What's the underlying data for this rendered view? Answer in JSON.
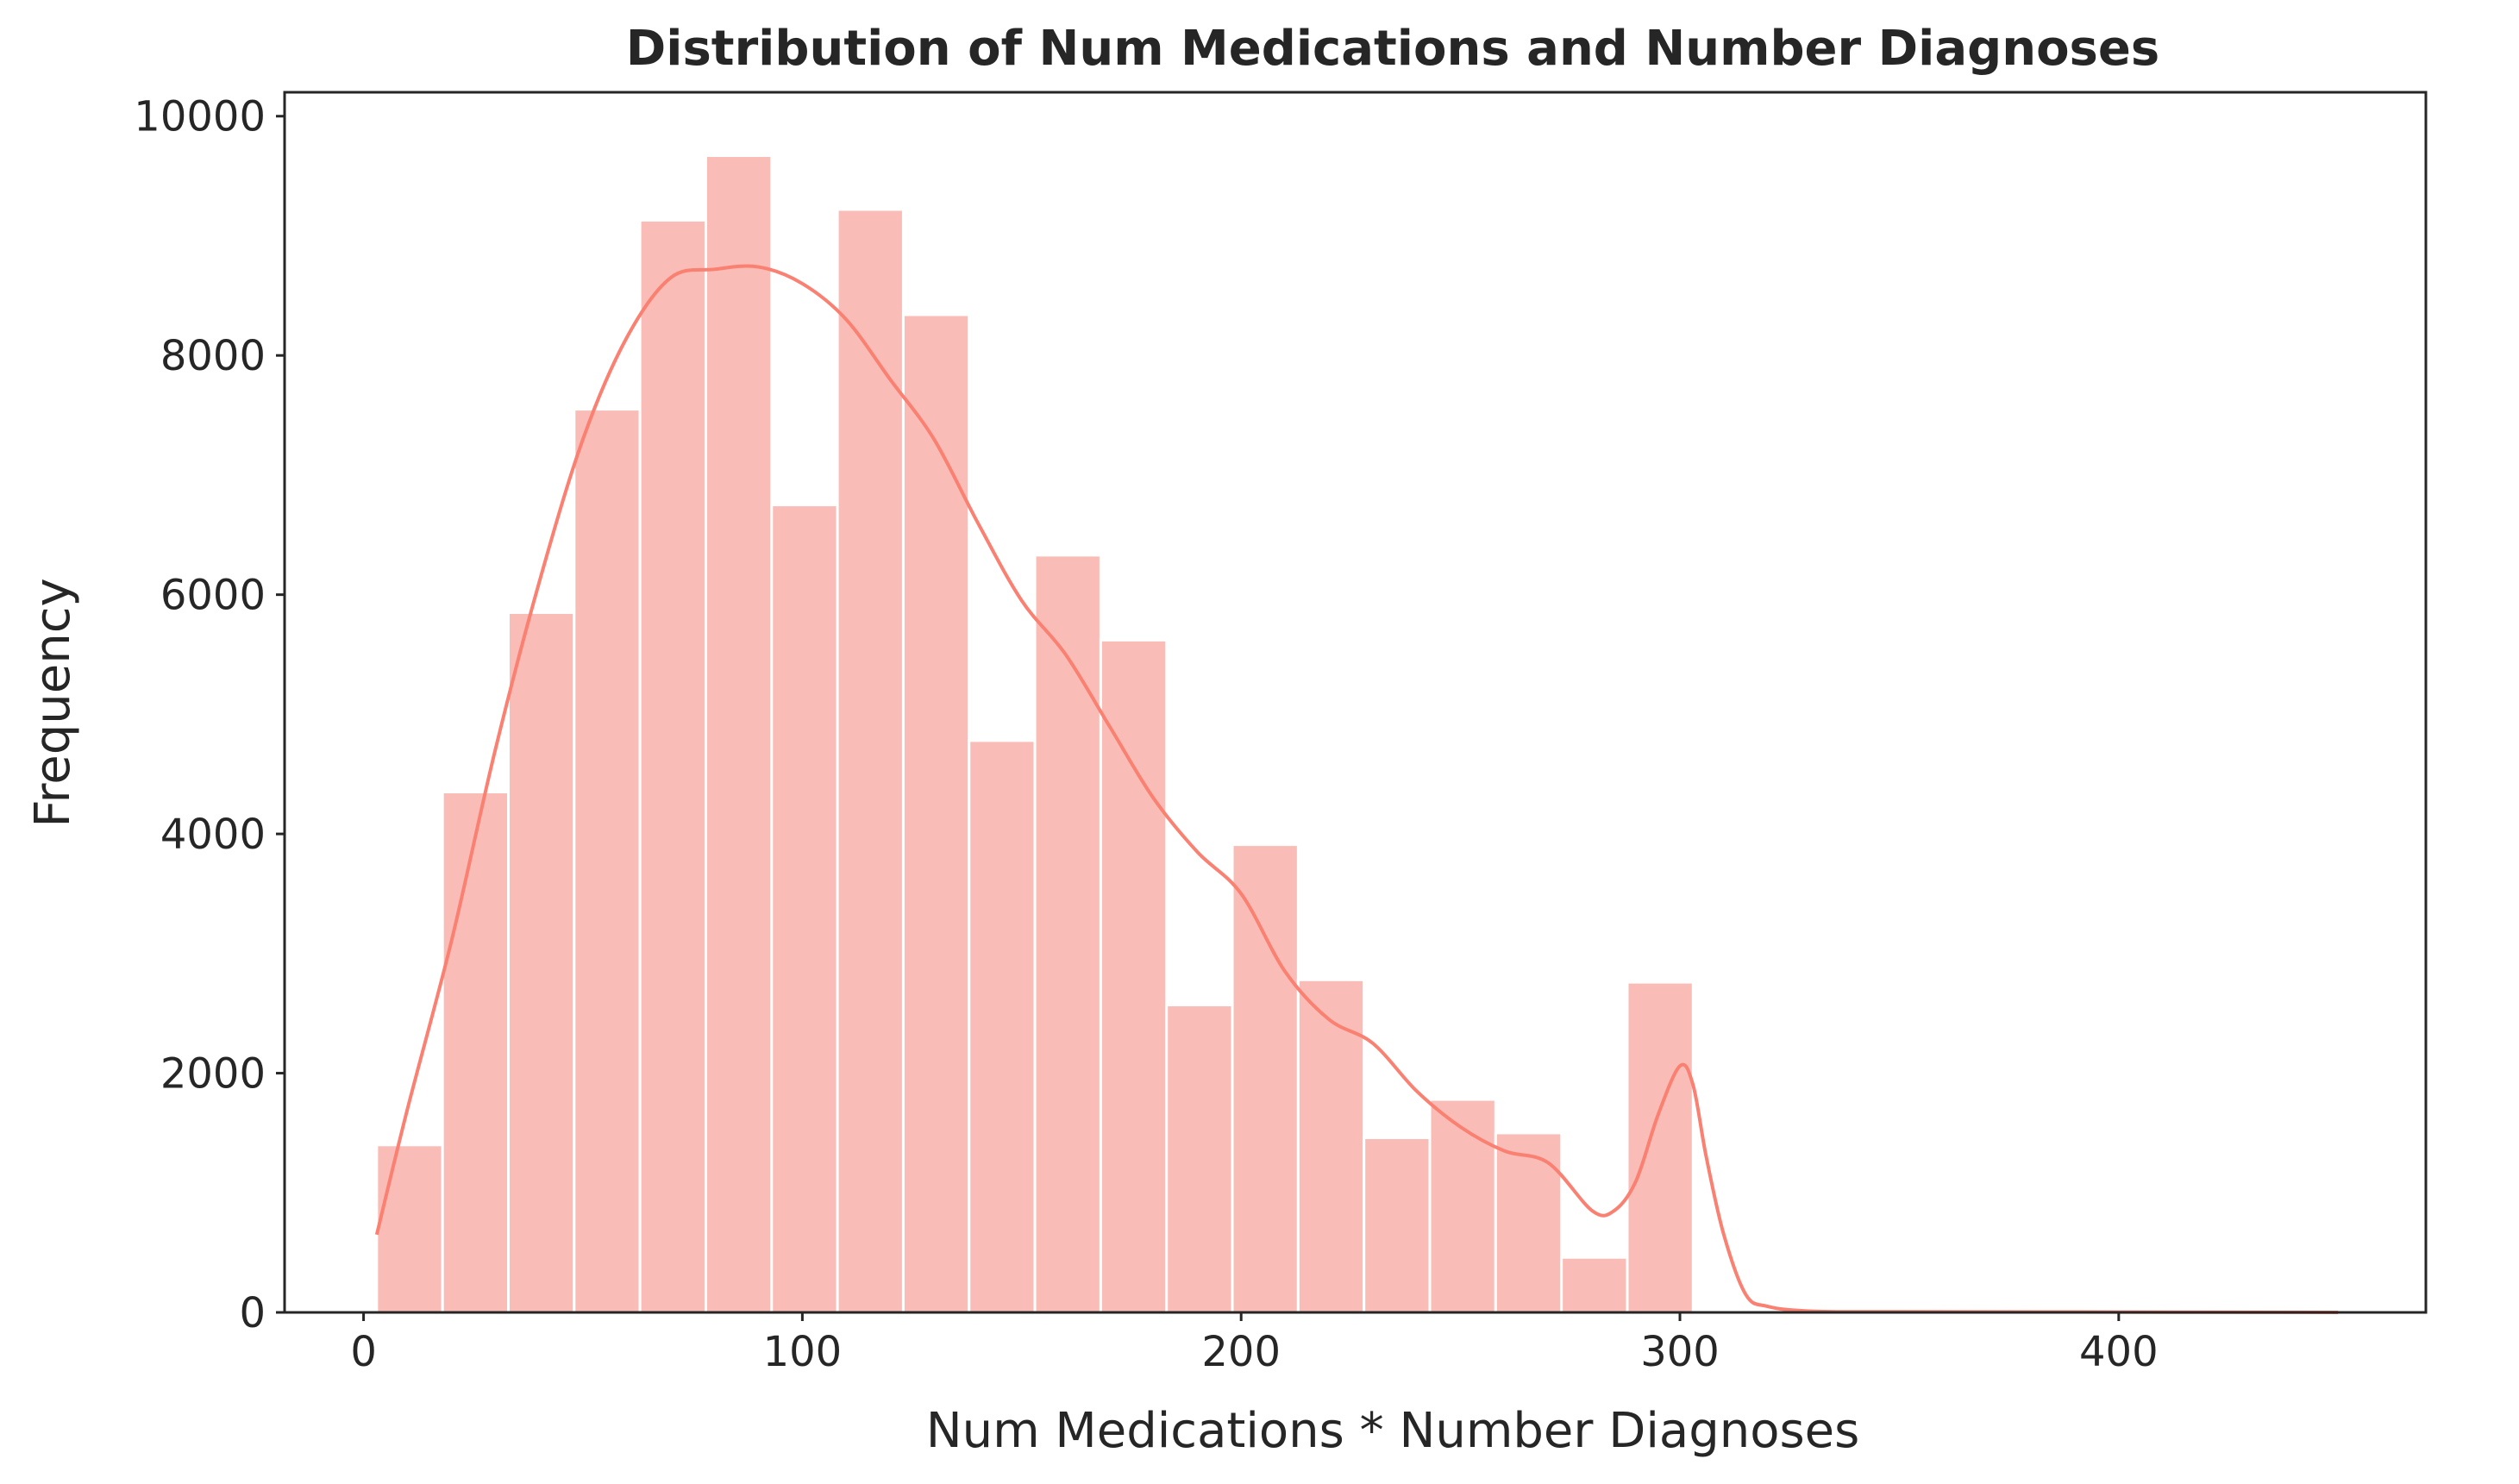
{
  "chart_data": {
    "type": "histogram",
    "title": "Distribution of Num Medications and Number Diagnoses",
    "xlabel": "Num Medications * Number Diagnoses",
    "ylabel": "Frequency",
    "xlim": [
      -18,
      470
    ],
    "ylim": [
      0,
      10200
    ],
    "xticks": [
      0,
      100,
      200,
      300,
      400
    ],
    "yticks": [
      0,
      2000,
      4000,
      6000,
      8000,
      10000
    ],
    "grid": false,
    "colors": {
      "bar": "#fabcb6",
      "kde": "#fa8072",
      "edge": "#ffffff"
    },
    "bins": [
      {
        "x0": 3,
        "x1": 18,
        "count": 1400
      },
      {
        "x0": 18,
        "x1": 33,
        "count": 4350
      },
      {
        "x0": 33,
        "x1": 48,
        "count": 5850
      },
      {
        "x0": 48,
        "x1": 63,
        "count": 7550
      },
      {
        "x0": 63,
        "x1": 78,
        "count": 9130
      },
      {
        "x0": 78,
        "x1": 93,
        "count": 9670
      },
      {
        "x0": 93,
        "x1": 108,
        "count": 6750
      },
      {
        "x0": 108,
        "x1": 123,
        "count": 9220
      },
      {
        "x0": 123,
        "x1": 138,
        "count": 8340
      },
      {
        "x0": 138,
        "x1": 153,
        "count": 4780
      },
      {
        "x0": 153,
        "x1": 168,
        "count": 6330
      },
      {
        "x0": 168,
        "x1": 183,
        "count": 5620
      },
      {
        "x0": 183,
        "x1": 198,
        "count": 2570
      },
      {
        "x0": 198,
        "x1": 213,
        "count": 3910
      },
      {
        "x0": 213,
        "x1": 228,
        "count": 2780
      },
      {
        "x0": 228,
        "x1": 243,
        "count": 1460
      },
      {
        "x0": 243,
        "x1": 258,
        "count": 1780
      },
      {
        "x0": 258,
        "x1": 273,
        "count": 1500
      },
      {
        "x0": 273,
        "x1": 288,
        "count": 460
      },
      {
        "x0": 288,
        "x1": 303,
        "count": 2760
      }
    ],
    "kde": {
      "x": [
        3,
        10,
        20,
        30,
        40,
        50,
        60,
        70,
        80,
        90,
        100,
        110,
        120,
        130,
        140,
        150,
        160,
        170,
        180,
        190,
        200,
        210,
        220,
        230,
        240,
        250,
        260,
        270,
        280,
        285,
        290,
        295,
        300,
        303,
        306,
        310,
        315,
        320,
        330,
        350,
        400,
        450
      ],
      "y": [
        650,
        1700,
        3100,
        4700,
        6100,
        7300,
        8150,
        8650,
        8720,
        8740,
        8600,
        8300,
        7800,
        7300,
        6600,
        5950,
        5500,
        4900,
        4300,
        3850,
        3500,
        2850,
        2450,
        2250,
        1850,
        1550,
        1350,
        1250,
        850,
        850,
        1100,
        1650,
        2060,
        1900,
        1300,
        650,
        150,
        50,
        10,
        5,
        3,
        0
      ]
    }
  }
}
